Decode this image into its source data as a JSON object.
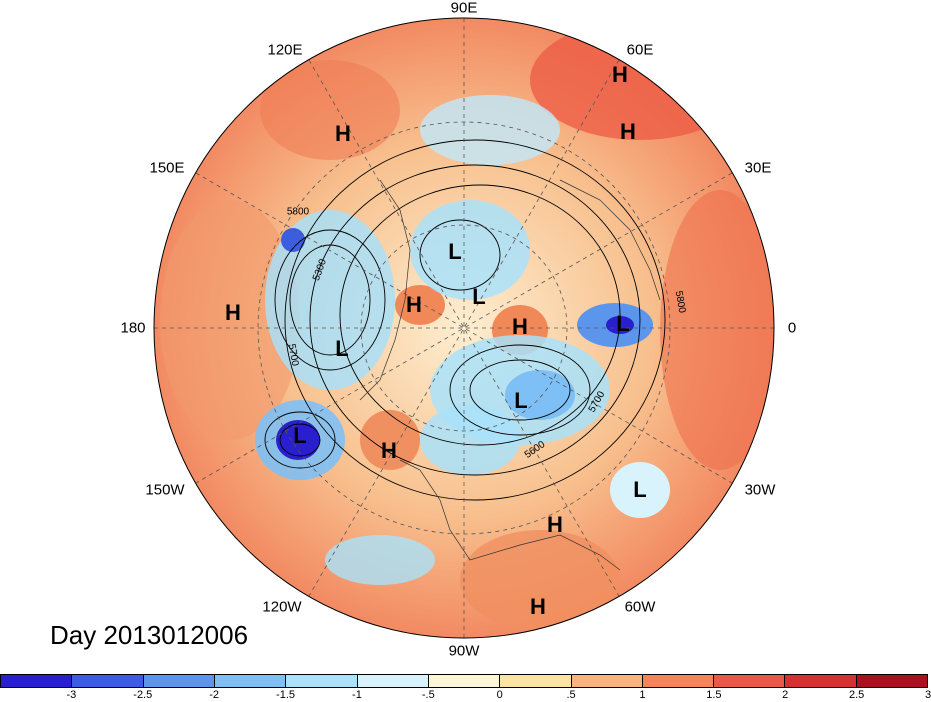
{
  "title": "Day 2013012006",
  "longitude_labels": [
    {
      "text": "90E",
      "lon": "90E"
    },
    {
      "text": "60E",
      "lon": "60E"
    },
    {
      "text": "30E",
      "lon": "30E"
    },
    {
      "text": "0",
      "lon": "0"
    },
    {
      "text": "30W",
      "lon": "30W"
    },
    {
      "text": "60W",
      "lon": "60W"
    },
    {
      "text": "90W",
      "lon": "90W"
    },
    {
      "text": "120W",
      "lon": "120W"
    },
    {
      "text": "150W",
      "lon": "150W"
    },
    {
      "text": "180",
      "lon": "180"
    },
    {
      "text": "150E",
      "lon": "150E"
    },
    {
      "text": "120E",
      "lon": "120E"
    }
  ],
  "pressure_centers": [
    "H",
    "H",
    "H",
    "H",
    "L",
    "L",
    "L",
    "L",
    "L",
    "H",
    "L",
    "H",
    "H",
    "H",
    "L",
    "H"
  ],
  "contour_labels": [
    "5800",
    "5300",
    "5700",
    "5700",
    "5600",
    "5800"
  ],
  "colorbar": {
    "colors": [
      "#2a1fcf",
      "#3b5ee0",
      "#5b96ec",
      "#7ec0f5",
      "#a9e2fa",
      "#d8f3fb",
      "#fdf6d4",
      "#fde3a0",
      "#f8b47c",
      "#f28658",
      "#e85a45",
      "#d5312e",
      "#a8121e"
    ],
    "tick_labels": [
      "-3",
      "-2.5",
      "-2",
      "-1.5",
      "-1",
      "-.5",
      "0",
      ".5",
      "1",
      "1.5",
      "2",
      "2.5",
      "3"
    ]
  }
}
